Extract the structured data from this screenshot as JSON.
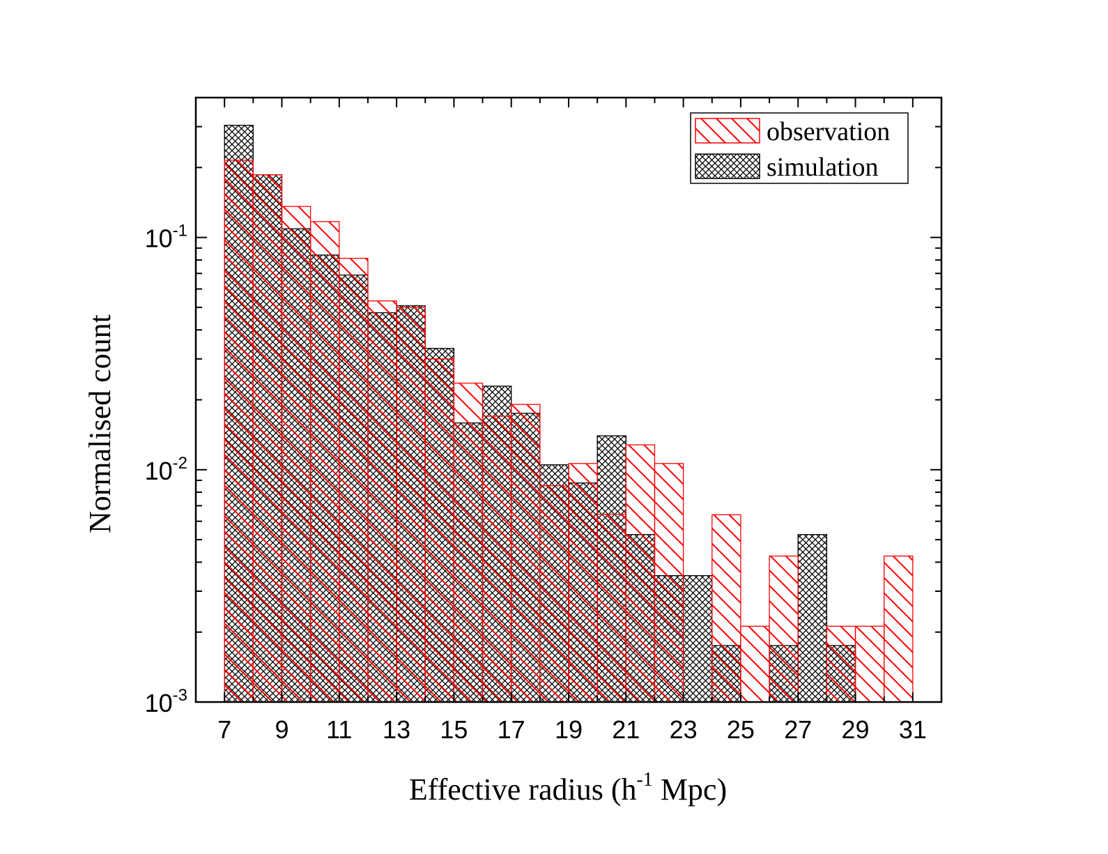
{
  "chart_data": {
    "type": "bar",
    "title": "",
    "xlabel": "Effective radius (h^-1 Mpc)",
    "xlabel_parts": {
      "pre": "Effective radius (h",
      "sup": "-1",
      "post": " Mpc)"
    },
    "ylabel": "Normalised count",
    "yscale": "log",
    "xlim": [
      6,
      32
    ],
    "ylim": [
      0.001,
      0.4
    ],
    "x_ticks": [
      7,
      9,
      11,
      13,
      15,
      17,
      19,
      21,
      23,
      25,
      27,
      29,
      31
    ],
    "y_ticks": [
      {
        "base": "10",
        "exp": "-1",
        "value": 0.1
      },
      {
        "base": "10",
        "exp": "-2",
        "value": 0.01
      },
      {
        "base": "10",
        "exp": "-3",
        "value": 0.001
      }
    ],
    "bin_edges": [
      7,
      8,
      9,
      10,
      11,
      12,
      13,
      14,
      15,
      16,
      17,
      18,
      19,
      20,
      21,
      22,
      23,
      24,
      25,
      26,
      27,
      28,
      29,
      30,
      31
    ],
    "legend_position": "top-right",
    "series": [
      {
        "name": "simulation",
        "color": "#000000",
        "pattern": "crosshatch",
        "values": [
          0.304,
          0.186,
          0.109,
          0.084,
          0.0689,
          0.0474,
          0.0508,
          0.0333,
          0.0159,
          0.0229,
          0.0175,
          0.0105,
          0.00877,
          0.014,
          0.00526,
          0.0035,
          0.0035,
          0.00175,
          0,
          0.00175,
          0.00526,
          0.00175,
          0,
          0
        ]
      },
      {
        "name": "observation",
        "color": "#ff0000",
        "pattern": "diagonal",
        "values": [
          0.215,
          0.186,
          0.136,
          0.117,
          0.0813,
          0.0533,
          0.05,
          0.03,
          0.0236,
          0.017,
          0.0191,
          0.00853,
          0.01064,
          0.00643,
          0.0128,
          0.01064,
          0,
          0.0064,
          0.00212,
          0.00425,
          0,
          0.00212,
          0.00212,
          0.00425
        ]
      }
    ]
  }
}
